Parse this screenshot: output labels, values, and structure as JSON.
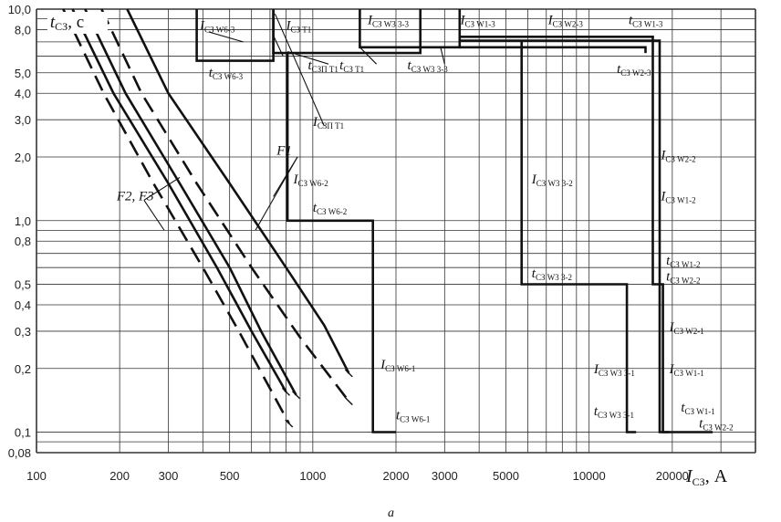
{
  "chart_data": {
    "type": "line",
    "x_scale": "log",
    "y_scale": "log",
    "xlim": [
      100,
      40000
    ],
    "ylim": [
      0.08,
      10
    ],
    "x_ticks": [
      {
        "v": 100,
        "label": "100"
      },
      {
        "v": 200,
        "label": "200"
      },
      {
        "v": 300,
        "label": "300"
      },
      {
        "v": 500,
        "label": "500"
      },
      {
        "v": 1000,
        "label": "1000"
      },
      {
        "v": 2000,
        "label": "2000"
      },
      {
        "v": 3000,
        "label": "3000"
      },
      {
        "v": 5000,
        "label": "5000"
      },
      {
        "v": 10000,
        "label": "10000"
      },
      {
        "v": 20000,
        "label": "20000"
      }
    ],
    "y_ticks": [
      {
        "v": 0.08,
        "label": "0,08"
      },
      {
        "v": 0.1,
        "label": "0,1"
      },
      {
        "v": 0.2,
        "label": "0,2"
      },
      {
        "v": 0.3,
        "label": "0,3"
      },
      {
        "v": 0.4,
        "label": "0,4"
      },
      {
        "v": 0.5,
        "label": "0,5"
      },
      {
        "v": 0.8,
        "label": "0,8"
      },
      {
        "v": 1,
        "label": "1,0"
      },
      {
        "v": 2,
        "label": "2,0"
      },
      {
        "v": 3,
        "label": "3,0"
      },
      {
        "v": 4,
        "label": "4,0"
      },
      {
        "v": 5,
        "label": "5,0"
      },
      {
        "v": 8,
        "label": "8,0"
      },
      {
        "v": 10,
        "label": "10,0"
      }
    ],
    "grid": true,
    "x_grid": [
      100,
      200,
      300,
      400,
      500,
      600,
      700,
      800,
      900,
      1000,
      2000,
      3000,
      4000,
      5000,
      6000,
      7000,
      8000,
      9000,
      10000,
      20000,
      30000,
      40000
    ],
    "y_grid": [
      0.08,
      0.09,
      0.1,
      0.2,
      0.3,
      0.4,
      0.5,
      0.6,
      0.7,
      0.8,
      0.9,
      1,
      2,
      3,
      4,
      5,
      6,
      7,
      8,
      9,
      10
    ],
    "ylabel": {
      "main": "t",
      "sub": "СЗ",
      "suffix": ", с"
    },
    "xlabel": {
      "main": "I",
      "sub": "СЗ",
      "suffix": ", А"
    },
    "caption": "а",
    "series": [
      {
        "style": "solid",
        "points": [
          [
            213,
            10
          ],
          [
            300,
            4
          ],
          [
            500,
            1.5
          ],
          [
            800,
            0.6
          ],
          [
            1100,
            0.32
          ],
          [
            1350,
            0.19
          ]
        ]
      },
      {
        "style": "dashed",
        "points": [
          [
            172,
            10
          ],
          [
            240,
            4
          ],
          [
            380,
            1.5
          ],
          [
            600,
            0.6
          ],
          [
            900,
            0.28
          ],
          [
            1350,
            0.14
          ]
        ]
      },
      {
        "style": "solid",
        "points": [
          [
            150,
            10
          ],
          [
            210,
            4
          ],
          [
            330,
            1.5
          ],
          [
            500,
            0.6
          ],
          [
            650,
            0.3
          ],
          [
            870,
            0.15
          ]
        ]
      },
      {
        "style": "dashed",
        "points": [
          [
            125,
            10
          ],
          [
            175,
            4
          ],
          [
            265,
            1.5
          ],
          [
            400,
            0.6
          ],
          [
            540,
            0.3
          ],
          [
            820,
            0.11
          ]
        ]
      },
      {
        "style": "solid",
        "points": [
          [
            135,
            10
          ],
          [
            190,
            4
          ],
          [
            300,
            1.5
          ],
          [
            450,
            0.6
          ],
          [
            600,
            0.3
          ],
          [
            800,
            0.155
          ]
        ]
      },
      {
        "style": "solid",
        "points": [
          [
            380,
            10
          ],
          [
            380,
            5.7
          ],
          [
            720,
            5.7
          ],
          [
            720,
            10
          ]
        ]
      },
      {
        "style": "solid",
        "points": [
          [
            720,
            10
          ],
          [
            720,
            6.2
          ],
          [
            810,
            6.2
          ],
          [
            810,
            1.0
          ],
          [
            1650,
            1.0
          ],
          [
            1650,
            0.1
          ],
          [
            2000,
            0.1
          ]
        ]
      },
      {
        "style": "solid",
        "points": [
          [
            810,
            6.2
          ],
          [
            2450,
            6.2
          ],
          [
            2450,
            10
          ]
        ]
      },
      {
        "style": "solid",
        "points": [
          [
            1480,
            10
          ],
          [
            1480,
            6.6
          ],
          [
            3400,
            6.6
          ],
          [
            3400,
            10
          ]
        ]
      },
      {
        "style": "solid",
        "points": [
          [
            3400,
            6.6
          ],
          [
            16000,
            6.6
          ],
          [
            16000,
            6.2
          ]
        ]
      },
      {
        "style": "solid",
        "points": [
          [
            3400,
            7.4
          ],
          [
            17000,
            7.4
          ],
          [
            17000,
            0.5
          ],
          [
            18000,
            0.5
          ],
          [
            18000,
            0.1
          ],
          [
            28000,
            0.1
          ]
        ]
      },
      {
        "style": "solid",
        "points": [
          [
            3400,
            7.1
          ],
          [
            18000,
            7.1
          ],
          [
            18000,
            0.5
          ],
          [
            18500,
            0.5
          ],
          [
            18500,
            0.1
          ],
          [
            19500,
            0.1
          ]
        ]
      },
      {
        "style": "solid",
        "points": [
          [
            5700,
            7.0
          ],
          [
            5700,
            0.5
          ],
          [
            13700,
            0.5
          ],
          [
            13700,
            0.1
          ],
          [
            14800,
            0.1
          ]
        ]
      }
    ],
    "annotations": [
      {
        "id": "tsz-label",
        "x": 112,
        "y": 8.2,
        "main": "t",
        "sub": "СЗ",
        "suffix": ", с",
        "size": "big"
      },
      {
        "id": "isz-w6-3",
        "x": 390,
        "y": 8.0,
        "main": "I",
        "sub": "СЗ W6-3"
      },
      {
        "id": "isz-t1",
        "x": 800,
        "y": 8.0,
        "main": "I",
        "sub": "СЗ T1"
      },
      {
        "id": "isz-w3-3-3",
        "x": 1580,
        "y": 8.5,
        "main": "I",
        "sub": "СЗ W3 3-3"
      },
      {
        "id": "isz-w1-3",
        "x": 3420,
        "y": 8.5,
        "main": "I",
        "sub": "СЗ W1-3"
      },
      {
        "id": "isz-w2-3",
        "x": 7100,
        "y": 8.5,
        "main": "I",
        "sub": "СЗ W2-3"
      },
      {
        "id": "tsz-w1-3",
        "x": 13900,
        "y": 8.5,
        "main": "t",
        "sub": "СЗ W1-3"
      },
      {
        "id": "tsz-w6-3",
        "x": 420,
        "y": 4.8,
        "main": "t",
        "sub": "СЗ W6-3"
      },
      {
        "id": "tsz-pt1",
        "x": 960,
        "y": 5.2,
        "main": "t",
        "sub": "СЗП T1"
      },
      {
        "id": "tsz-t1",
        "x": 1250,
        "y": 5.2,
        "main": "t",
        "sub": "СЗ T1"
      },
      {
        "id": "tsz-w3-3-3",
        "x": 2200,
        "y": 5.2,
        "main": "t",
        "sub": "СЗ W3 3-3"
      },
      {
        "id": "tsz-w2-3",
        "x": 12600,
        "y": 5.0,
        "main": "t",
        "sub": "СЗ W2-3"
      },
      {
        "id": "isz-pt1",
        "x": 1000,
        "y": 2.8,
        "main": "I",
        "sub": "СЗП T1"
      },
      {
        "id": "f1",
        "x": 740,
        "y": 2.05,
        "main": "F1",
        "sub": ""
      },
      {
        "id": "isz-w6-2",
        "x": 850,
        "y": 1.5,
        "main": "I",
        "sub": "СЗ W6-2"
      },
      {
        "id": "isz-w3-3-2",
        "x": 6200,
        "y": 1.5,
        "main": "I",
        "sub": "СЗ W3 3-2"
      },
      {
        "id": "isz-w2-2",
        "x": 18200,
        "y": 1.95,
        "main": "I",
        "sub": "СЗ W2-2"
      },
      {
        "id": "isz-w1-2",
        "x": 18200,
        "y": 1.25,
        "main": "I",
        "sub": "СЗ W1-2"
      },
      {
        "id": "f2-f3",
        "x": 195,
        "y": 1.25,
        "main": "F2, F3",
        "sub": ""
      },
      {
        "id": "tsz-w6-2",
        "x": 1000,
        "y": 1.1,
        "main": "t",
        "sub": "СЗ W6-2"
      },
      {
        "id": "tsz-w1-2",
        "x": 19000,
        "y": 0.62,
        "main": "t",
        "sub": "СЗ W1-2"
      },
      {
        "id": "tsz-w3-3-2",
        "x": 6200,
        "y": 0.54,
        "main": "t",
        "sub": "СЗ W3 3-2"
      },
      {
        "id": "tsz-w2-2",
        "x": 19000,
        "y": 0.52,
        "main": "t",
        "sub": "СЗ W2-2"
      },
      {
        "id": "isz-w2-1",
        "x": 19500,
        "y": 0.3,
        "main": "I",
        "sub": "СЗ W2-1"
      },
      {
        "id": "isz-w6-1",
        "x": 1760,
        "y": 0.2,
        "main": "I",
        "sub": "СЗ W6-1"
      },
      {
        "id": "isz-w3-3-1",
        "x": 10400,
        "y": 0.19,
        "main": "I",
        "sub": "СЗ W3 3-1"
      },
      {
        "id": "isz-w1-1",
        "x": 19500,
        "y": 0.19,
        "main": "I",
        "sub": "СЗ W1-1"
      },
      {
        "id": "tsz-w1-1",
        "x": 21500,
        "y": 0.125,
        "main": "t",
        "sub": "СЗ W1-1"
      },
      {
        "id": "tsz-w3-3-1",
        "x": 10400,
        "y": 0.12,
        "main": "t",
        "sub": "СЗ W3 3-1"
      },
      {
        "id": "tsz-w6-1",
        "x": 2000,
        "y": 0.115,
        "main": "t",
        "sub": "СЗ W6-1"
      },
      {
        "id": "tsz-w2-2-low",
        "x": 25000,
        "y": 0.105,
        "main": "t",
        "sub": "СЗ W2-2"
      }
    ],
    "leaders": [
      {
        "from": [
          880,
          2.0
        ],
        "to": [
          720,
          1.3
        ]
      },
      {
        "from": [
          880,
          2.0
        ],
        "to": [
          620,
          0.9
        ]
      },
      {
        "from": [
          245,
          1.25
        ],
        "to": [
          330,
          1.6
        ]
      },
      {
        "from": [
          245,
          1.25
        ],
        "to": [
          290,
          0.9
        ]
      },
      {
        "from": [
          560,
          7.0
        ],
        "to": [
          420,
          7.8
        ]
      },
      {
        "from": [
          780,
          6.0
        ],
        "to": [
          720,
          7.5
        ]
      },
      {
        "from": [
          1100,
          2.8
        ],
        "to": [
          730,
          9.5
        ]
      },
      {
        "from": [
          1140,
          5.5
        ],
        "to": [
          810,
          6.3
        ]
      },
      {
        "from": [
          1700,
          5.5
        ],
        "to": [
          1480,
          6.6
        ]
      },
      {
        "from": [
          3000,
          5.5
        ],
        "to": [
          2900,
          6.6
        ]
      }
    ]
  }
}
